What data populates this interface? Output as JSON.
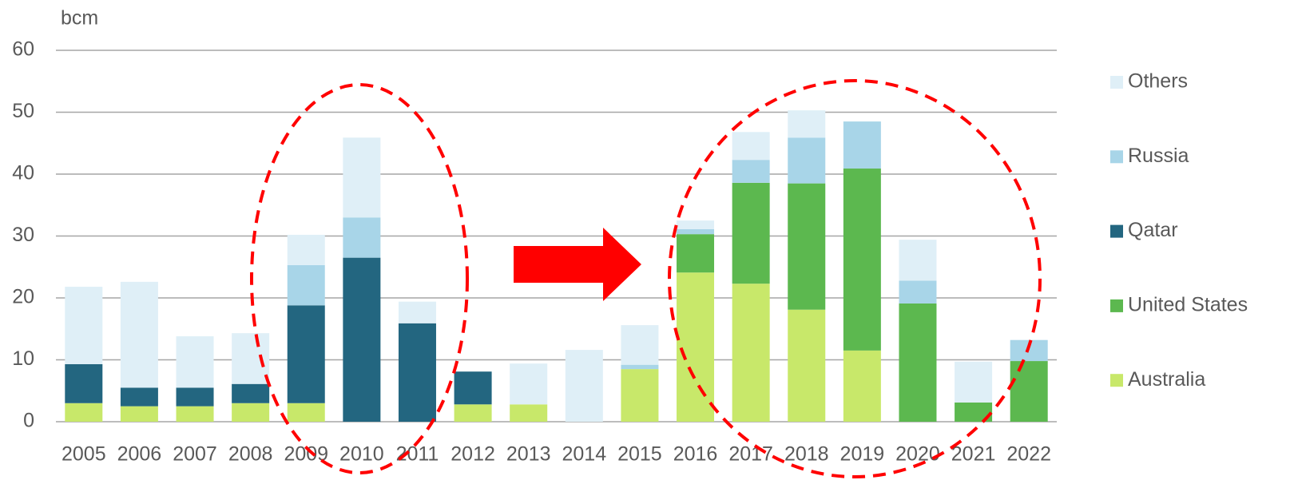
{
  "chart_data": {
    "type": "stacked_bar",
    "y_label": "bcm",
    "categories": [
      "2005",
      "2006",
      "2007",
      "2008",
      "2009",
      "2010",
      "2011",
      "2012",
      "2013",
      "2014",
      "2015",
      "2016",
      "2017",
      "2018",
      "2019",
      "2020",
      "2021",
      "2022"
    ],
    "series": [
      {
        "name": "Australia",
        "color": "#c8e86a",
        "values": [
          3.0,
          2.5,
          2.5,
          3.0,
          3.0,
          0,
          0,
          2.8,
          2.8,
          0,
          8.5,
          24.1,
          22.3,
          18.1,
          11.5,
          0,
          0,
          0
        ]
      },
      {
        "name": "United States",
        "color": "#5cb84f",
        "values": [
          0,
          0,
          0,
          0,
          0,
          0,
          0,
          0,
          0,
          0,
          0,
          6.2,
          16.3,
          20.4,
          29.4,
          19.1,
          3.1,
          9.8
        ]
      },
      {
        "name": "Qatar",
        "color": "#236680",
        "values": [
          6.3,
          3.0,
          3.0,
          3.1,
          15.8,
          26.5,
          15.9,
          5.3,
          0,
          0,
          0,
          0,
          0,
          0,
          0,
          0,
          0,
          0
        ]
      },
      {
        "name": "Russia",
        "color": "#a8d5e8",
        "values": [
          0,
          0,
          0,
          0,
          6.5,
          6.5,
          0,
          0,
          0,
          0,
          0.7,
          0.8,
          3.7,
          7.4,
          7.6,
          3.7,
          0,
          3.4
        ]
      },
      {
        "name": "Others",
        "color": "#dfeff7",
        "values": [
          12.5,
          17.1,
          8.3,
          8.2,
          4.9,
          12.9,
          3.5,
          0,
          6.6,
          11.6,
          6.4,
          1.4,
          4.5,
          4.4,
          0,
          6.6,
          6.6,
          0
        ]
      }
    ],
    "ylim": [
      0,
      60
    ],
    "yticks": [
      0,
      10,
      20,
      30,
      40,
      50,
      60
    ],
    "grid": true
  }
}
